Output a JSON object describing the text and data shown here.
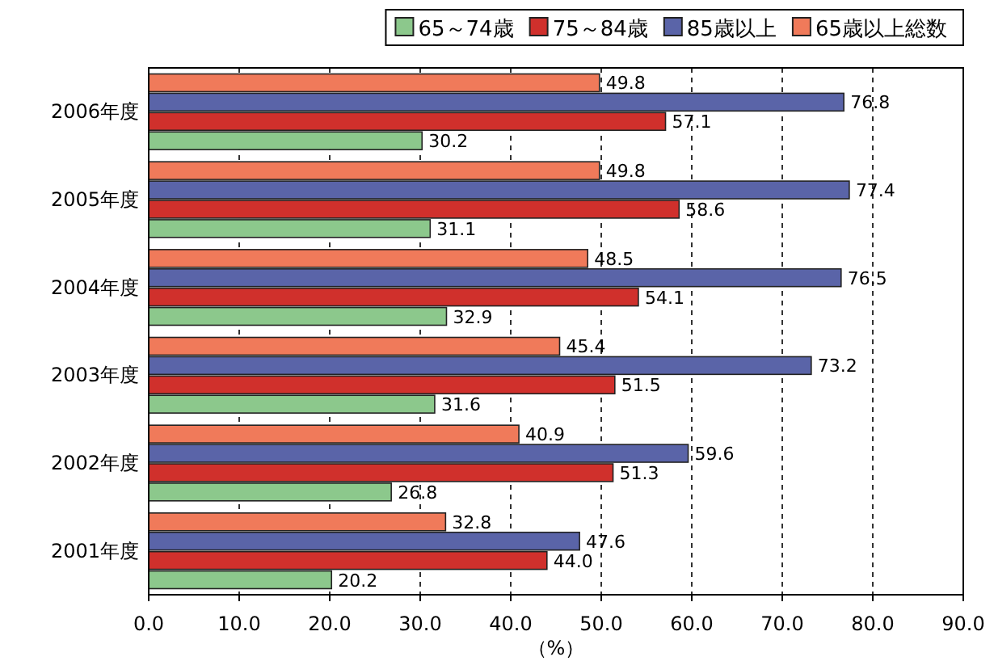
{
  "chart_data": {
    "type": "bar",
    "orientation": "horizontal",
    "categories": [
      "2006年度",
      "2005年度",
      "2004年度",
      "2003年度",
      "2002年度",
      "2001年度"
    ],
    "series": [
      {
        "name": "65～74歳",
        "color": "#8cc88c",
        "values": [
          30.2,
          31.1,
          32.9,
          31.6,
          26.8,
          20.2
        ],
        "value_labels": [
          "30.2",
          "31.1",
          "32.9",
          "31.6",
          "26.8",
          "20.2"
        ]
      },
      {
        "name": "75～84歳",
        "color": "#d0302c",
        "values": [
          57.1,
          58.6,
          54.1,
          51.5,
          51.3,
          44.0
        ],
        "value_labels": [
          "57.1",
          "58.6",
          "54.1",
          "51.5",
          "51.3",
          "44.0"
        ]
      },
      {
        "name": "85歳以上",
        "color": "#5a64a8",
        "values": [
          76.8,
          77.4,
          76.5,
          73.2,
          59.6,
          47.6
        ],
        "value_labels": [
          "76.8",
          "77.4",
          "76.5",
          "73.2",
          "59.6",
          "47.6"
        ]
      },
      {
        "name": "65歳以上総数",
        "color": "#f07a5a",
        "values": [
          49.8,
          49.8,
          48.5,
          45.4,
          40.9,
          32.8
        ],
        "value_labels": [
          "49.8",
          "49.8",
          "48.5",
          "45.4",
          "40.9",
          "32.8"
        ]
      }
    ],
    "xlim": [
      0,
      90
    ],
    "xticks": [
      {
        "value": 0,
        "label": "0.0"
      },
      {
        "value": 10,
        "label": "10.0"
      },
      {
        "value": 20,
        "label": "20.0"
      },
      {
        "value": 30,
        "label": "30.0"
      },
      {
        "value": 40,
        "label": "40.0"
      },
      {
        "value": 50,
        "label": "50.0"
      },
      {
        "value": 60,
        "label": "60.0"
      },
      {
        "value": 70,
        "label": "70.0"
      },
      {
        "value": 80,
        "label": "80.0"
      },
      {
        "value": 90,
        "label": "90.0"
      }
    ],
    "xlabel": "（%）",
    "grid": "x",
    "legend": "top right"
  }
}
